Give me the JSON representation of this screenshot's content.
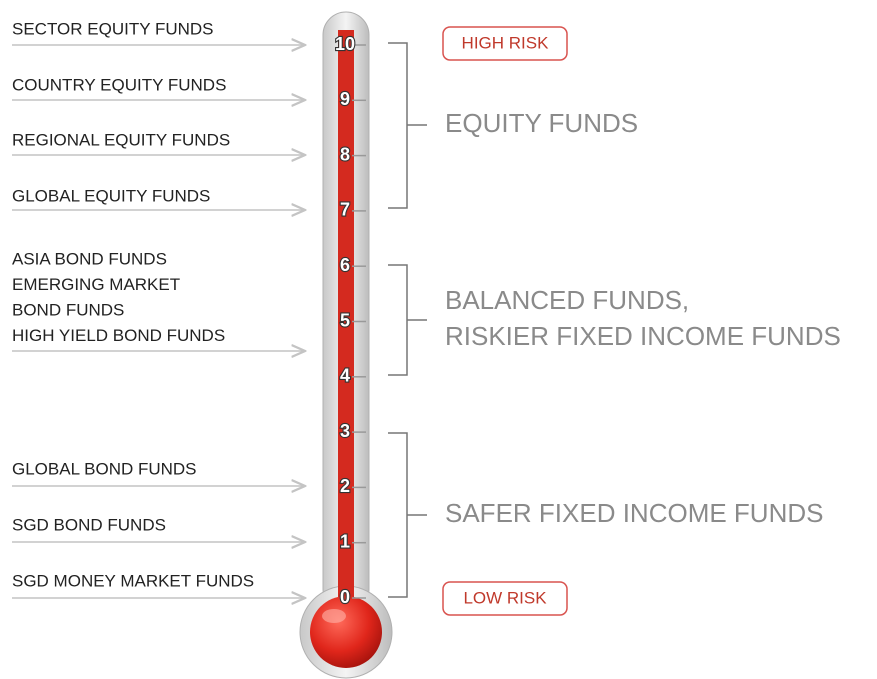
{
  "left_labels": [
    [
      "SECTOR EQUITY FUNDS"
    ],
    [
      "COUNTRY EQUITY FUNDS"
    ],
    [
      "REGIONAL EQUITY FUNDS"
    ],
    [
      "GLOBAL EQUITY FUNDS"
    ],
    [
      "ASIA BOND FUNDS",
      "EMERGING MARKET",
      "BOND FUNDS",
      "HIGH YIELD BOND FUNDS"
    ],
    [
      "GLOBAL BOND FUNDS"
    ],
    [
      "SGD BOND FUNDS"
    ],
    [
      "SGD MONEY MARKET FUNDS"
    ]
  ],
  "scale": [
    0,
    1,
    2,
    3,
    4,
    5,
    6,
    7,
    8,
    9,
    10
  ],
  "groups": [
    {
      "lines": [
        "EQUITY FUNDS"
      ]
    },
    {
      "lines": [
        "BALANCED FUNDS,",
        "RISKIER FIXED INCOME FUNDS"
      ]
    },
    {
      "lines": [
        "SAFER FIXED INCOME FUNDS"
      ]
    }
  ],
  "high_risk": "HIGH RISK",
  "low_risk": "LOW RISK"
}
